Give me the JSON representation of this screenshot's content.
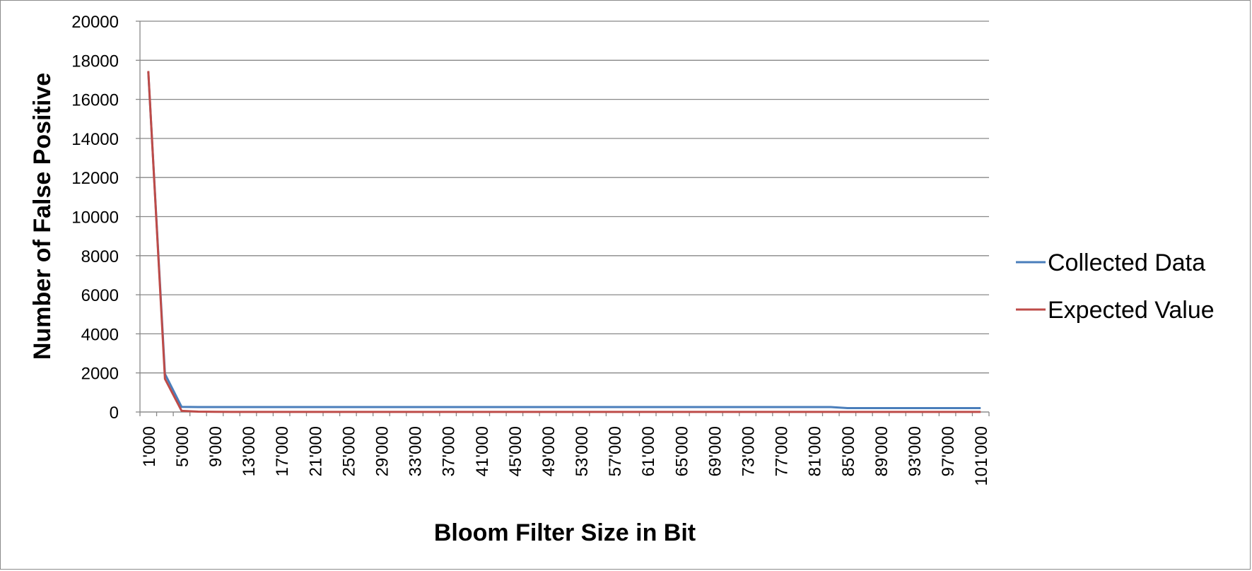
{
  "chart_data": {
    "type": "line",
    "title": "",
    "xlabel": "Bloom Filter Size in Bit",
    "ylabel": "Number of False Positive",
    "ylim": [
      0,
      20000
    ],
    "yticks": [
      "0",
      "2000",
      "4000",
      "6000",
      "8000",
      "10000",
      "12000",
      "14000",
      "16000",
      "18000",
      "20000"
    ],
    "x": [
      "1'000",
      "3'000",
      "5'000",
      "7'000",
      "9'000",
      "11'000",
      "13'000",
      "15'000",
      "17'000",
      "19'000",
      "21'000",
      "23'000",
      "25'000",
      "27'000",
      "29'000",
      "31'000",
      "33'000",
      "35'000",
      "37'000",
      "39'000",
      "41'000",
      "43'000",
      "45'000",
      "47'000",
      "49'000",
      "51'000",
      "53'000",
      "55'000",
      "57'000",
      "59'000",
      "61'000",
      "63'000",
      "65'000",
      "67'000",
      "69'000",
      "71'000",
      "73'000",
      "75'000",
      "77'000",
      "79'000",
      "81'000",
      "83'000",
      "85'000",
      "87'000",
      "89'000",
      "91'000",
      "93'000",
      "95'000",
      "97'000",
      "99'000",
      "101'000"
    ],
    "xtick_labels": [
      "1'000",
      "5'000",
      "9'000",
      "13'000",
      "17'000",
      "21'000",
      "25'000",
      "29'000",
      "33'000",
      "37'000",
      "41'000",
      "45'000",
      "49'000",
      "53'000",
      "57'000",
      "61'000",
      "65'000",
      "69'000",
      "73'000",
      "77'000",
      "81'000",
      "85'000",
      "89'000",
      "93'000",
      "97'000",
      "101'000"
    ],
    "series": [
      {
        "name": "Collected Data",
        "color": "#4a7ebb",
        "values": [
          17400,
          1950,
          260,
          255,
          255,
          255,
          255,
          255,
          255,
          255,
          255,
          255,
          255,
          255,
          255,
          255,
          255,
          255,
          255,
          255,
          255,
          255,
          255,
          255,
          255,
          255,
          255,
          255,
          255,
          255,
          255,
          255,
          255,
          255,
          255,
          255,
          255,
          255,
          255,
          255,
          255,
          255,
          200,
          200,
          200,
          200,
          200,
          200,
          200,
          200,
          200
        ]
      },
      {
        "name": "Expected Value",
        "color": "#be4b48",
        "values": [
          17450,
          1700,
          60,
          20,
          10,
          5,
          5,
          5,
          5,
          5,
          5,
          5,
          5,
          5,
          5,
          5,
          5,
          5,
          5,
          5,
          5,
          5,
          5,
          5,
          5,
          5,
          5,
          5,
          5,
          5,
          5,
          5,
          5,
          5,
          5,
          5,
          5,
          5,
          5,
          5,
          5,
          5,
          5,
          5,
          5,
          5,
          5,
          5,
          5,
          5,
          5
        ]
      }
    ],
    "grid": true,
    "legend": "right"
  }
}
